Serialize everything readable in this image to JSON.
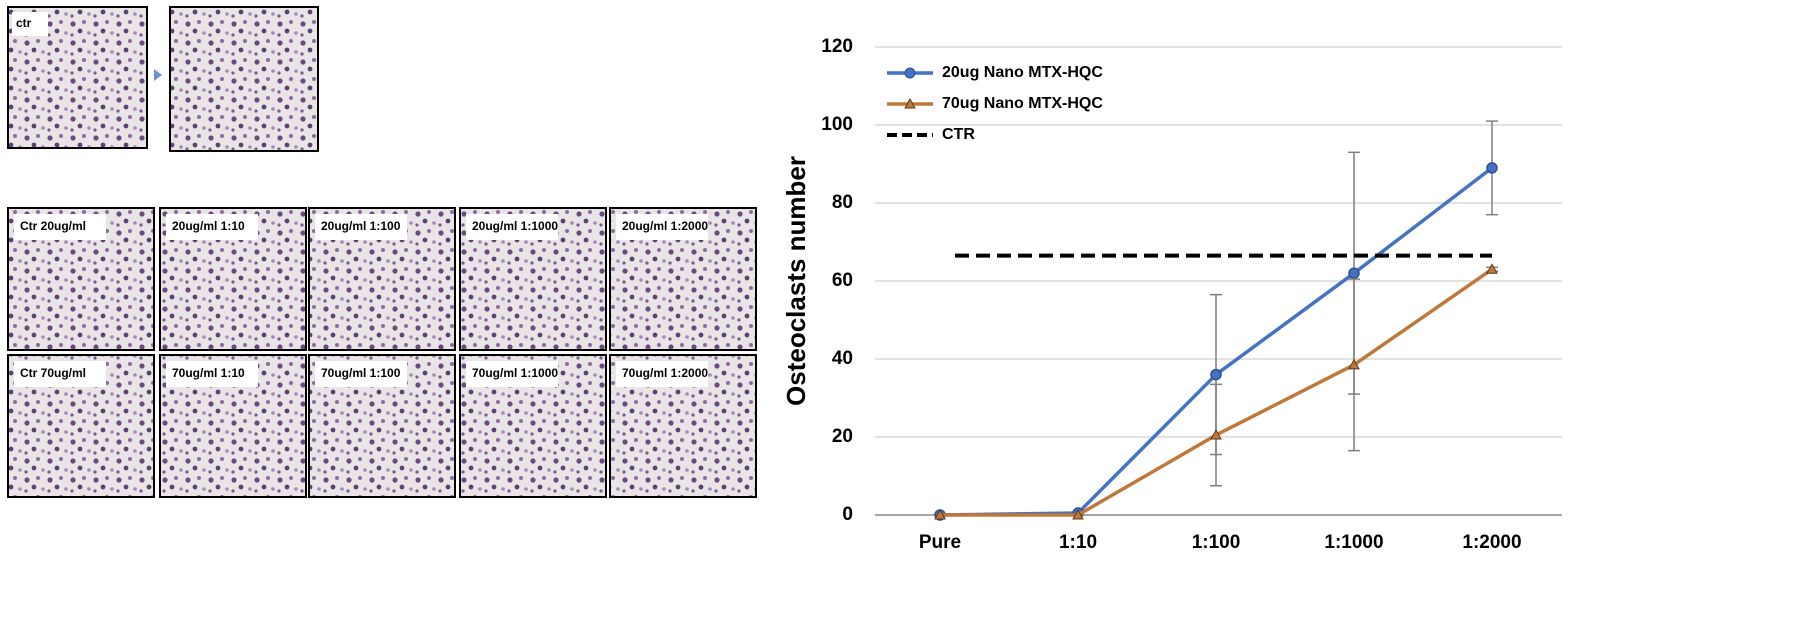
{
  "images": {
    "top_label": "ctr",
    "rows": [
      [
        "Ctr 20ug/ml",
        "20ug/ml 1:10",
        "20ug/ml 1:100",
        "20ug/ml 1:1000",
        "20ug/ml 1:2000"
      ],
      [
        "Ctr 70ug/ml",
        "70ug/ml 1:10",
        "70ug/ml 1:100",
        "70ug/ml 1:1000",
        "70ug/ml 1:2000"
      ]
    ]
  },
  "chart_data": {
    "type": "line",
    "y_label": "Osteoclasts number",
    "categories": [
      "Pure",
      "1:10",
      "1:100",
      "1:1000",
      "1:2000"
    ],
    "series": [
      {
        "name": "20ug Nano MTX-HQC",
        "color": "#4472c4",
        "marker": "circle",
        "values": [
          0,
          0.5,
          36,
          62,
          89
        ],
        "errors": [
          0,
          0,
          20.5,
          31,
          12
        ]
      },
      {
        "name": "70ug Nano MTX-HQC",
        "color": "#c0783a",
        "marker": "triangle",
        "values": [
          0,
          0,
          20.5,
          38.5,
          63
        ],
        "errors": [
          0,
          0,
          13,
          22,
          0.5
        ]
      },
      {
        "name": "CTR",
        "color": "#000000",
        "dashed": true,
        "values": [
          66.5,
          66.5,
          66.5,
          66.5,
          66.5
        ]
      }
    ],
    "ylim": [
      0,
      120
    ],
    "yticks": [
      0,
      20,
      40,
      60,
      80,
      100,
      120
    ],
    "grid": true
  }
}
